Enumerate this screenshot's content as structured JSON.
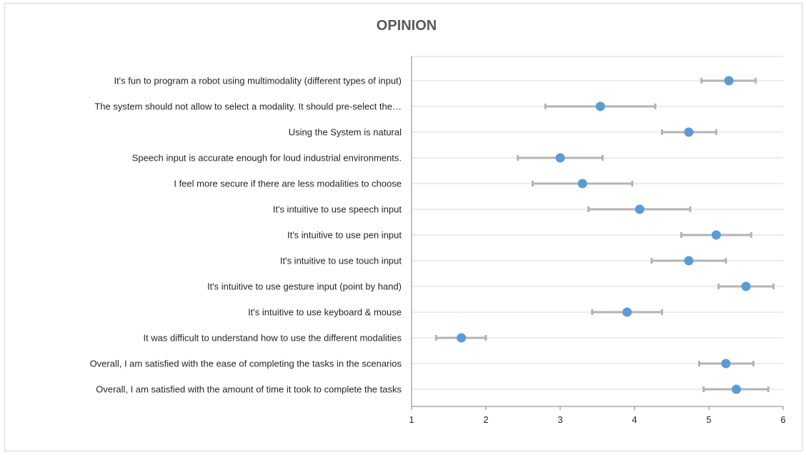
{
  "chart_data": {
    "type": "scatter",
    "title": "OPINION",
    "xlabel": "",
    "ylabel": "",
    "xlim": [
      1,
      6
    ],
    "xticks": [
      1,
      2,
      3,
      4,
      5,
      6
    ],
    "grid": "horizontal",
    "legend": "none",
    "colors": {
      "marker": "#5b9bd5",
      "errorbar": "#b3b3b3",
      "grid": "#d9d9d9",
      "axis": "#7f7f7f"
    },
    "categories": [
      "It's fun to program a robot using multimodality (different types of input)",
      "The system should not allow to select a modality. It should pre-select the…",
      "Using the System is natural",
      "Speech input is accurate enough for loud industrial environments.",
      "I feel more secure if there are less modalities to choose",
      "It's intuitive to use speech input",
      "It's intuitive to use pen input",
      "It's intuitive to use touch input",
      "It's intuitive to use gesture input (point by hand)",
      "It's intuitive to use keyboard & mouse",
      "It was difficult to understand how to use the different modalities",
      "Overall, I am satisfied with the ease of completing the tasks in the scenarios",
      "Overall, I am satisfied with the amount of time it took to complete the tasks"
    ],
    "values": [
      5.27,
      3.54,
      4.73,
      3.0,
      3.3,
      4.07,
      5.1,
      4.73,
      5.5,
      3.9,
      1.67,
      5.23,
      5.37
    ],
    "error_low": [
      4.9,
      2.8,
      4.37,
      2.43,
      2.63,
      3.38,
      4.63,
      4.23,
      5.13,
      3.43,
      1.33,
      4.87,
      4.93
    ],
    "error_high": [
      5.63,
      4.28,
      5.1,
      3.57,
      3.97,
      4.75,
      5.57,
      5.23,
      5.87,
      4.37,
      2.0,
      5.6,
      5.8
    ]
  }
}
